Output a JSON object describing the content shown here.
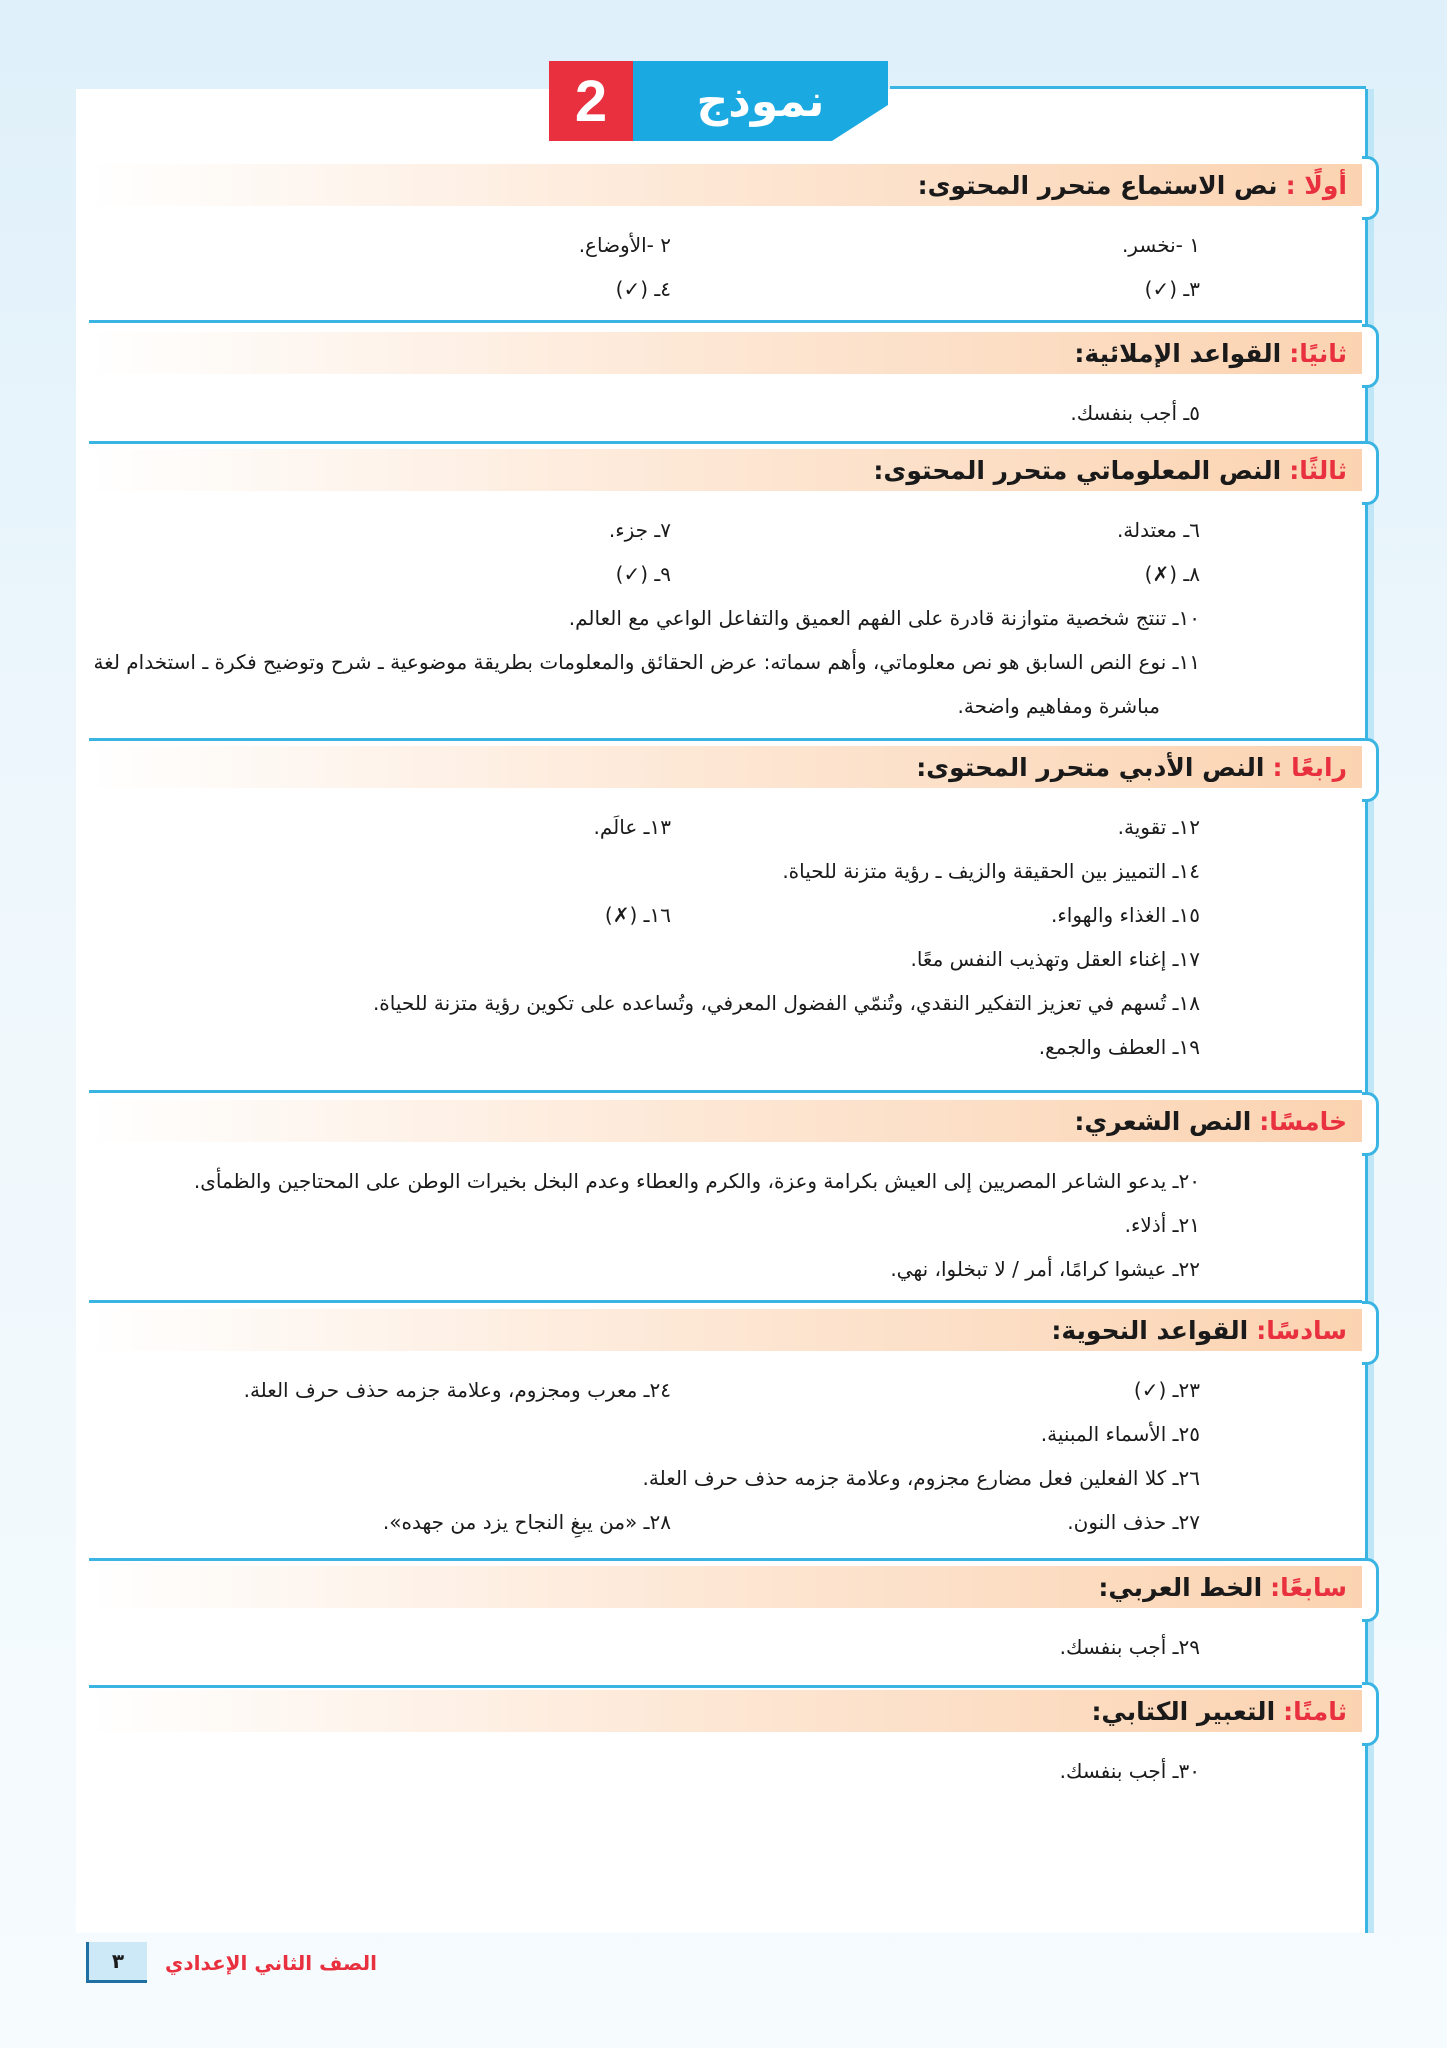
{
  "header": {
    "title": "نموذج",
    "number": "2"
  },
  "colors": {
    "accent_blue": "#1aa9e1",
    "accent_red": "#e8303f",
    "header_band": "#fbd3b1"
  },
  "sections": [
    {
      "label": "أولًا :",
      "title": "نص الاستماع متحرر المحتوى:",
      "rows": [
        [
          "١ -نخسر.",
          "٢ -الأوضاع."
        ],
        [
          "٣ـ (✓)",
          "٤ـ (✓)"
        ]
      ]
    },
    {
      "label": "ثانيًا:",
      "title": "القواعد الإملائية:",
      "rows": [
        [
          "٥ـ أجب بنفسك."
        ]
      ]
    },
    {
      "label": "ثالثًا:",
      "title": "النص المعلوماتي متحرر المحتوى:",
      "rows": [
        [
          "٦ـ معتدلة.",
          "٧ـ جزء."
        ],
        [
          "٨ـ (✗)",
          "٩ـ (✓)"
        ],
        [
          "١٠ـ تنتج شخصية متوازنة قادرة على الفهم العميق والتفاعل الواعي مع العالم."
        ],
        [
          "١١ـ نوع النص السابق هو نص معلوماتي، وأهم سماته: عرض الحقائق والمعلومات بطريقة موضوعية ـ شرح وتوضيح فكرة ـ استخدام لغة مباشرة ومفاهيم واضحة."
        ]
      ]
    },
    {
      "label": "رابعًا :",
      "title": "النص الأدبي متحرر المحتوى:",
      "rows": [
        [
          "١٢ـ تقوية.",
          "١٣ـ عالَم."
        ],
        [
          "١٤ـ التمييز بين الحقيقة والزيف ـ رؤية متزنة للحياة."
        ],
        [
          "١٥ـ الغذاء والهواء.",
          "١٦ـ (✗)"
        ],
        [
          "١٧ـ إغناء العقل وتهذيب النفس معًا."
        ],
        [
          "١٨ـ تُسهم في تعزيز التفكير النقدي، وتُنمّي الفضول المعرفي، وتُساعده على تكوين رؤية متزنة للحياة."
        ],
        [
          "١٩ـ العطف والجمع."
        ]
      ]
    },
    {
      "label": "خامسًا:",
      "title": "النص الشعري:",
      "rows": [
        [
          "٢٠ـ يدعو الشاعر المصريين إلى العيش بكرامة وعزة، والكرم والعطاء وعدم البخل بخيرات الوطن على المحتاجين والظمأى."
        ],
        [
          "٢١ـ أذلاء."
        ],
        [
          "٢٢ـ عيشوا كرامًا، أمر / لا تبخلوا، نهي."
        ]
      ]
    },
    {
      "label": "سادسًا:",
      "title": "القواعد النحوية:",
      "rows": [
        [
          "٢٣ـ (✓)",
          "٢٤ـ معرب ومجزوم، وعلامة جزمه حذف حرف العلة."
        ],
        [
          "٢٥ـ الأسماء المبنية."
        ],
        [
          "٢٦ـ كلا الفعلين فعل مضارع مجزوم، وعلامة جزمه حذف حرف العلة."
        ],
        [
          "٢٧ـ حذف النون.",
          "٢٨ـ «من يبغِ النجاح يزد من جهده»."
        ]
      ]
    },
    {
      "label": "سابعًا:",
      "title": "الخط العربي:",
      "rows": [
        [
          "٢٩ـ أجب بنفسك."
        ]
      ]
    },
    {
      "label": "ثامنًا:",
      "title": "التعبير الكتابي:",
      "rows": [
        [
          "٣٠ـ أجب بنفسك."
        ]
      ]
    }
  ],
  "footer": {
    "page_number": "٣",
    "grade": "الصف الثاني الإعدادي"
  }
}
